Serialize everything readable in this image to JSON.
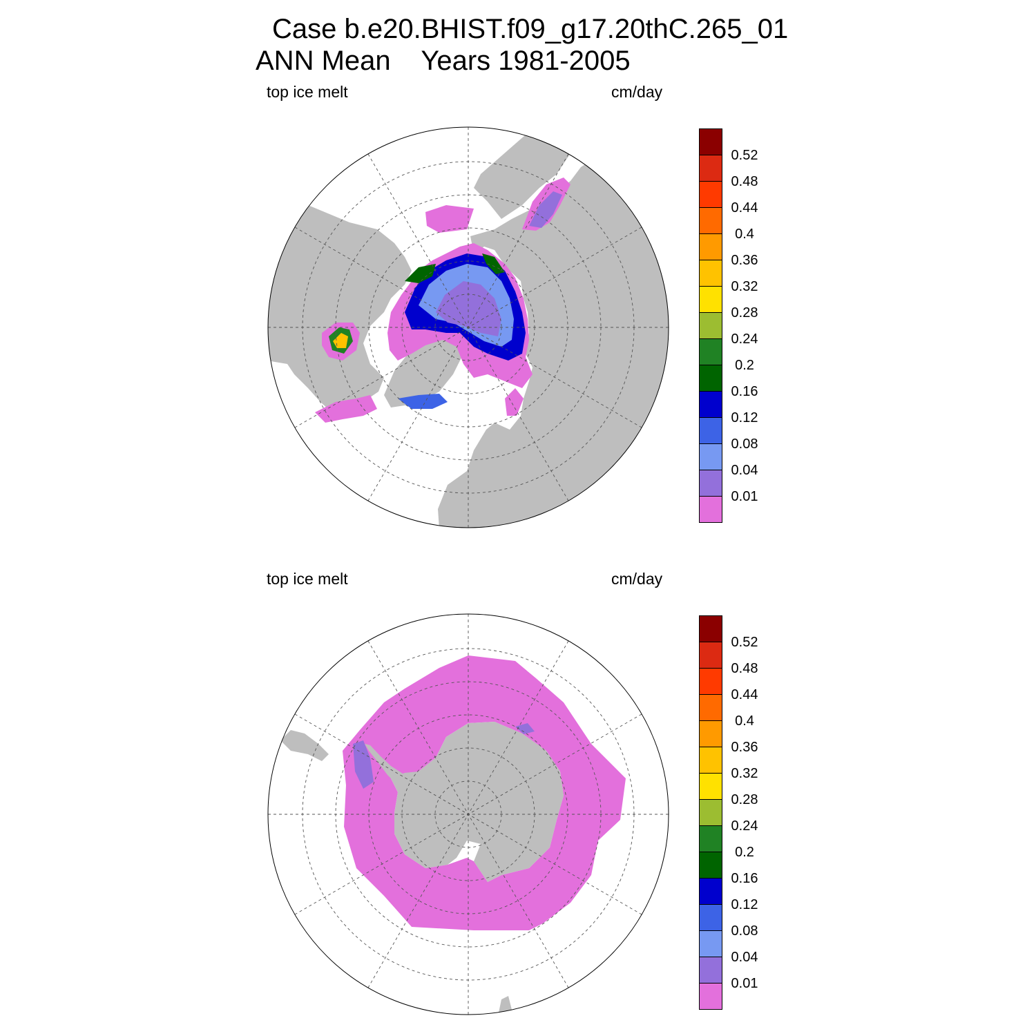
{
  "title": {
    "line1": "Case b.e20.BHIST.f09_g17.20thC.265_01",
    "line2": "ANN Mean    Years 1981-2005"
  },
  "panels": [
    {
      "hemisphere": "north",
      "variable_label": "top ice melt",
      "units_label": "cm/day"
    },
    {
      "hemisphere": "south",
      "variable_label": "top ice melt",
      "units_label": "cm/day"
    }
  ],
  "colorbar": {
    "levels": [
      "0.52",
      "0.48",
      "0.44",
      "0.4",
      "0.36",
      "0.32",
      "0.28",
      "0.24",
      "0.2",
      "0.16",
      "0.12",
      "0.08",
      "0.04",
      "0.01"
    ],
    "colors": [
      "#8b0000",
      "#dc2a12",
      "#ff3a00",
      "#ff6a00",
      "#ff9a00",
      "#ffc200",
      "#ffe100",
      "#9cbd31",
      "#208224",
      "#006400",
      "#0000cd",
      "#3d63e6",
      "#7799f2",
      "#9370db",
      "#e370dc"
    ]
  },
  "map_colors": {
    "land": "#bebebe",
    "ocean": "#ffffff"
  }
}
